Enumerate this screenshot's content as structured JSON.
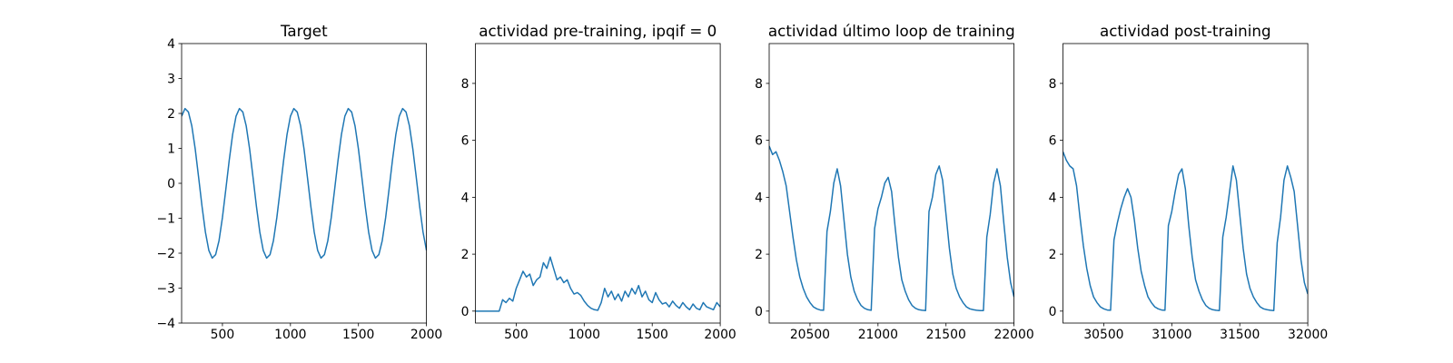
{
  "chart_data": [
    {
      "type": "line",
      "title": "Target",
      "color": "#1f77b4",
      "x": [
        200,
        225,
        250,
        275,
        300,
        325,
        350,
        375,
        400,
        425,
        450,
        475,
        500,
        525,
        550,
        575,
        600,
        625,
        650,
        675,
        700,
        725,
        750,
        775,
        800,
        825,
        850,
        875,
        900,
        925,
        950,
        975,
        1000,
        1025,
        1050,
        1075,
        1100,
        1125,
        1150,
        1175,
        1200,
        1225,
        1250,
        1275,
        1300,
        1325,
        1350,
        1375,
        1400,
        1425,
        1450,
        1475,
        1500,
        1525,
        1550,
        1575,
        1600,
        1625,
        1650,
        1675,
        1700,
        1725,
        1750,
        1775,
        1800,
        1825,
        1850,
        1875,
        1900,
        1925,
        1950,
        1975,
        2000
      ],
      "values": [
        1.92,
        2.14,
        2.04,
        1.64,
        0.98,
        0.17,
        -0.66,
        -1.4,
        -1.92,
        -2.14,
        -2.04,
        -1.64,
        -0.98,
        -0.17,
        0.66,
        1.4,
        1.92,
        2.14,
        2.04,
        1.64,
        0.98,
        0.17,
        -0.66,
        -1.4,
        -1.92,
        -2.14,
        -2.04,
        -1.64,
        -0.98,
        -0.17,
        0.66,
        1.4,
        1.92,
        2.14,
        2.04,
        1.64,
        0.98,
        0.17,
        -0.66,
        -1.4,
        -1.92,
        -2.14,
        -2.04,
        -1.64,
        -0.98,
        -0.17,
        0.66,
        1.4,
        1.92,
        2.14,
        2.04,
        1.64,
        0.98,
        0.17,
        -0.66,
        -1.4,
        -1.92,
        -2.14,
        -2.04,
        -1.64,
        -0.98,
        -0.17,
        0.66,
        1.4,
        1.92,
        2.14,
        2.04,
        1.64,
        0.98,
        0.17,
        -0.66,
        -1.4,
        -1.92
      ],
      "xlim": [
        200,
        2000
      ],
      "xticks": [
        500,
        1000,
        1500,
        2000
      ],
      "ylim": [
        -4,
        4
      ],
      "yticks": [
        {
          "value": -4,
          "label": "−4"
        },
        {
          "value": -3,
          "label": "−3"
        },
        {
          "value": -2,
          "label": "−2"
        },
        {
          "value": -1,
          "label": "−1"
        },
        0,
        1,
        2,
        3,
        4
      ]
    },
    {
      "type": "line",
      "title": "actividad pre-training, ipqif = 0",
      "color": "#1f77b4",
      "x": [
        200,
        225,
        250,
        275,
        300,
        325,
        350,
        375,
        400,
        425,
        450,
        475,
        500,
        525,
        550,
        575,
        600,
        625,
        650,
        675,
        700,
        725,
        750,
        775,
        800,
        825,
        850,
        875,
        900,
        925,
        950,
        975,
        1000,
        1025,
        1050,
        1075,
        1100,
        1125,
        1150,
        1175,
        1200,
        1225,
        1250,
        1275,
        1300,
        1325,
        1350,
        1375,
        1400,
        1425,
        1450,
        1475,
        1500,
        1525,
        1550,
        1575,
        1600,
        1625,
        1650,
        1675,
        1700,
        1725,
        1750,
        1775,
        1800,
        1825,
        1850,
        1875,
        1900,
        1925,
        1950,
        1975,
        2000
      ],
      "values": [
        0,
        0,
        0,
        0,
        0,
        0,
        0,
        0,
        0.4,
        0.3,
        0.45,
        0.35,
        0.8,
        1.1,
        1.4,
        1.2,
        1.3,
        0.9,
        1.1,
        1.2,
        1.7,
        1.5,
        1.9,
        1.5,
        1.1,
        1.2,
        1.0,
        1.1,
        0.8,
        0.6,
        0.65,
        0.55,
        0.35,
        0.2,
        0.1,
        0.05,
        0.03,
        0.3,
        0.8,
        0.5,
        0.7,
        0.4,
        0.6,
        0.35,
        0.7,
        0.5,
        0.8,
        0.6,
        0.9,
        0.5,
        0.7,
        0.4,
        0.3,
        0.65,
        0.4,
        0.25,
        0.3,
        0.15,
        0.35,
        0.2,
        0.1,
        0.3,
        0.15,
        0.05,
        0.25,
        0.1,
        0.05,
        0.3,
        0.15,
        0.1,
        0.05,
        0.3,
        0.15
      ],
      "xlim": [
        200,
        2000
      ],
      "xticks": [
        500,
        1000,
        1500,
        2000
      ],
      "ylim": [
        -0.42,
        9.4
      ],
      "yticks": [
        0,
        2,
        4,
        6,
        8
      ]
    },
    {
      "type": "line",
      "title": "actividad último loop de training",
      "color": "#1f77b4",
      "x": [
        20200,
        20225,
        20250,
        20275,
        20300,
        20325,
        20350,
        20375,
        20400,
        20425,
        20450,
        20475,
        20500,
        20525,
        20550,
        20575,
        20600,
        20625,
        20650,
        20675,
        20700,
        20725,
        20750,
        20775,
        20800,
        20825,
        20850,
        20875,
        20900,
        20925,
        20950,
        20975,
        21000,
        21025,
        21050,
        21075,
        21100,
        21125,
        21150,
        21175,
        21200,
        21225,
        21250,
        21275,
        21300,
        21325,
        21350,
        21375,
        21400,
        21425,
        21450,
        21475,
        21500,
        21525,
        21550,
        21575,
        21600,
        21625,
        21650,
        21675,
        21700,
        21725,
        21750,
        21775,
        21800,
        21825,
        21850,
        21875,
        21900,
        21925,
        21950,
        21975,
        22000
      ],
      "values": [
        5.8,
        5.5,
        5.6,
        5.3,
        4.9,
        4.4,
        3.5,
        2.6,
        1.8,
        1.2,
        0.8,
        0.5,
        0.3,
        0.15,
        0.08,
        0.04,
        0.03,
        2.8,
        3.5,
        4.5,
        5.0,
        4.4,
        3.2,
        2.0,
        1.2,
        0.7,
        0.4,
        0.2,
        0.1,
        0.05,
        0.03,
        2.9,
        3.6,
        4.0,
        4.5,
        4.7,
        4.2,
        3.0,
        1.9,
        1.1,
        0.7,
        0.4,
        0.2,
        0.1,
        0.05,
        0.03,
        0.02,
        3.5,
        4.0,
        4.8,
        5.1,
        4.6,
        3.4,
        2.2,
        1.3,
        0.8,
        0.5,
        0.3,
        0.15,
        0.08,
        0.05,
        0.03,
        0.02,
        0.02,
        2.6,
        3.4,
        4.5,
        5.0,
        4.4,
        3.1,
        1.9,
        1.0,
        0.5
      ],
      "xlim": [
        20200,
        22000
      ],
      "xticks": [
        20500,
        21000,
        21500,
        22000
      ],
      "ylim": [
        -0.42,
        9.4
      ],
      "yticks": [
        0,
        2,
        4,
        6,
        8
      ]
    },
    {
      "type": "line",
      "title": "actividad post-training",
      "color": "#1f77b4",
      "x": [
        30200,
        30225,
        30250,
        30275,
        30300,
        30325,
        30350,
        30375,
        30400,
        30425,
        30450,
        30475,
        30500,
        30525,
        30550,
        30575,
        30600,
        30625,
        30650,
        30675,
        30700,
        30725,
        30750,
        30775,
        30800,
        30825,
        30850,
        30875,
        30900,
        30925,
        30950,
        30975,
        31000,
        31025,
        31050,
        31075,
        31100,
        31125,
        31150,
        31175,
        31200,
        31225,
        31250,
        31275,
        31300,
        31325,
        31350,
        31375,
        31400,
        31425,
        31450,
        31475,
        31500,
        31525,
        31550,
        31575,
        31600,
        31625,
        31650,
        31675,
        31700,
        31725,
        31750,
        31775,
        31800,
        31825,
        31850,
        31875,
        31900,
        31925,
        31950,
        31975,
        32000
      ],
      "values": [
        5.6,
        5.3,
        5.1,
        5.0,
        4.4,
        3.3,
        2.3,
        1.5,
        0.9,
        0.5,
        0.3,
        0.15,
        0.08,
        0.04,
        0.03,
        2.5,
        3.1,
        3.6,
        4.0,
        4.3,
        4.0,
        3.2,
        2.2,
        1.4,
        0.9,
        0.5,
        0.3,
        0.15,
        0.08,
        0.04,
        0.03,
        3.0,
        3.5,
        4.2,
        4.8,
        5.0,
        4.3,
        3.0,
        1.9,
        1.1,
        0.7,
        0.4,
        0.2,
        0.1,
        0.05,
        0.03,
        0.02,
        2.6,
        3.3,
        4.2,
        5.1,
        4.6,
        3.4,
        2.2,
        1.3,
        0.8,
        0.5,
        0.3,
        0.15,
        0.08,
        0.05,
        0.03,
        0.02,
        2.4,
        3.3,
        4.6,
        5.1,
        4.7,
        4.2,
        3.0,
        1.8,
        1.0,
        0.6
      ],
      "xlim": [
        30200,
        32000
      ],
      "xticks": [
        30500,
        31000,
        31500,
        32000
      ],
      "ylim": [
        -0.42,
        9.4
      ],
      "yticks": [
        0,
        2,
        4,
        6,
        8
      ]
    }
  ]
}
